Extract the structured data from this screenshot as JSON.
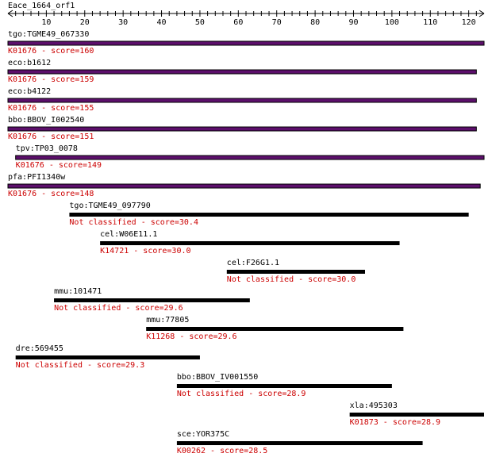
{
  "query": {
    "name": "Eace_1664_orf1"
  },
  "ruler": {
    "min": 0,
    "max": 124,
    "ticks": [
      10,
      20,
      30,
      40,
      50,
      60,
      70,
      80,
      90,
      100,
      110,
      120
    ]
  },
  "colors": {
    "bar_best": "#5c0f6b",
    "bar_outline": "#000000",
    "bar_other": "#000000",
    "label": "#000000",
    "subtitle": "#cc0000"
  },
  "hits": [
    {
      "label": "tgo:TGME49_067330",
      "subtitle": "K01676 - score=160",
      "start": 0,
      "end": 124,
      "highlight": true
    },
    {
      "label": "eco:b1612",
      "subtitle": "K01676 - score=159",
      "start": 0,
      "end": 122,
      "highlight": true
    },
    {
      "label": "eco:b4122",
      "subtitle": "K01676 - score=155",
      "start": 0,
      "end": 122,
      "highlight": true
    },
    {
      "label": "bbo:BBOV_I002540",
      "subtitle": "K01676 - score=151",
      "start": 0,
      "end": 122,
      "highlight": true
    },
    {
      "label": "tpv:TP03_0078",
      "subtitle": "K01676 - score=149",
      "start": 2,
      "end": 124,
      "highlight": true
    },
    {
      "label": "pfa:PFI1340w",
      "subtitle": "K01676 - score=148",
      "start": 0,
      "end": 123,
      "highlight": true
    },
    {
      "label": "tgo:TGME49_097790",
      "subtitle": "Not classified - score=30.4",
      "start": 16,
      "end": 120,
      "highlight": false
    },
    {
      "label": "cel:W06E11.1",
      "subtitle": "K14721 - score=30.0",
      "start": 24,
      "end": 102,
      "highlight": false
    },
    {
      "label": "cel:F26G1.1",
      "subtitle": "Not classified - score=30.0",
      "start": 57,
      "end": 93,
      "highlight": false
    },
    {
      "label": "mmu:101471",
      "subtitle": "Not classified - score=29.6",
      "start": 12,
      "end": 63,
      "highlight": false
    },
    {
      "label": "mmu:77805",
      "subtitle": "K11268 - score=29.6",
      "start": 36,
      "end": 103,
      "highlight": false
    },
    {
      "label": "dre:569455",
      "subtitle": "Not classified - score=29.3",
      "start": 2,
      "end": 50,
      "highlight": false
    },
    {
      "label": "bbo:BBOV_IV001550",
      "subtitle": "Not classified - score=28.9",
      "start": 44,
      "end": 100,
      "highlight": false
    },
    {
      "label": "xla:495303",
      "subtitle": "K01873 - score=28.9",
      "start": 89,
      "end": 124,
      "highlight": false
    },
    {
      "label": "sce:YOR375C",
      "subtitle": "K00262 - score=28.5",
      "start": 44,
      "end": 108,
      "highlight": false
    }
  ]
}
